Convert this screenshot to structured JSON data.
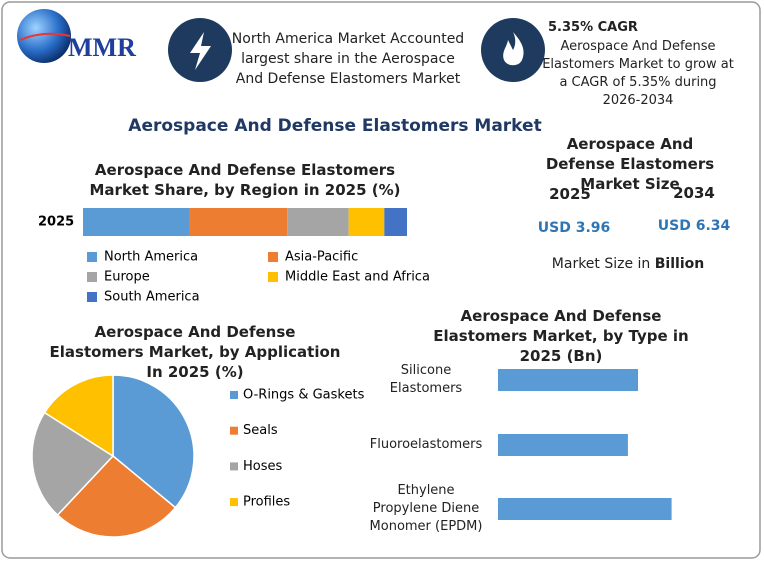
{
  "header": {
    "logo": "MMR",
    "highlight_1": "North America Market Accounted largest share in the Aerospace And Defense Elastomers Market",
    "highlight_2_title": "5.35% CAGR",
    "highlight_2_text": "Aerospace And Defense Elastomers Market to grow at a CAGR of 5.35% during 2026-2034",
    "title": "Aerospace And Defense Elastomers Market"
  },
  "market_size": {
    "title": "Aerospace And Defense Elastomers Market Size",
    "years": [
      "2025",
      "2034"
    ],
    "values": [
      "USD 3.96",
      "USD 6.34"
    ],
    "note": "Market Size in",
    "unit": "Billion"
  },
  "chart_data": [
    {
      "type": "stacked-bar",
      "title": "Aerospace And Defense Elastomers Market Share, by Region in 2025 (%)",
      "categories": [
        "2025"
      ],
      "series": [
        {
          "name": "North America",
          "color": "#5b9bd5",
          "values": [
            33
          ]
        },
        {
          "name": "Asia-Pacific",
          "color": "#ed7d31",
          "values": [
            30
          ]
        },
        {
          "name": "Europe",
          "color": "#a5a5a5",
          "values": [
            19
          ]
        },
        {
          "name": "Middle East and Africa",
          "color": "#ffc000",
          "values": [
            11
          ]
        },
        {
          "name": "South America",
          "color": "#4472c4",
          "values": [
            7
          ]
        }
      ]
    },
    {
      "type": "pie",
      "title": "Aerospace And Defense Elastomers Market, by Application In 2025 (%)",
      "categories": [
        "O-Rings & Gaskets",
        "Seals",
        "Hoses",
        "Profiles"
      ],
      "values": [
        36,
        26,
        22,
        16
      ],
      "colors": [
        "#5b9bd5",
        "#ed7d31",
        "#a5a5a5",
        "#ffc000"
      ]
    },
    {
      "type": "hbar",
      "title": "Aerospace And Defense Elastomers Market, by Type in 2025 (Bn)",
      "categories": [
        "Silicone Elastomers",
        "Fluoroelastomers",
        "Ethylene Propylene Diene Monomer (EPDM)"
      ],
      "values": [
        1.25,
        1.16,
        1.55
      ],
      "color": "#5b9bd5"
    }
  ]
}
